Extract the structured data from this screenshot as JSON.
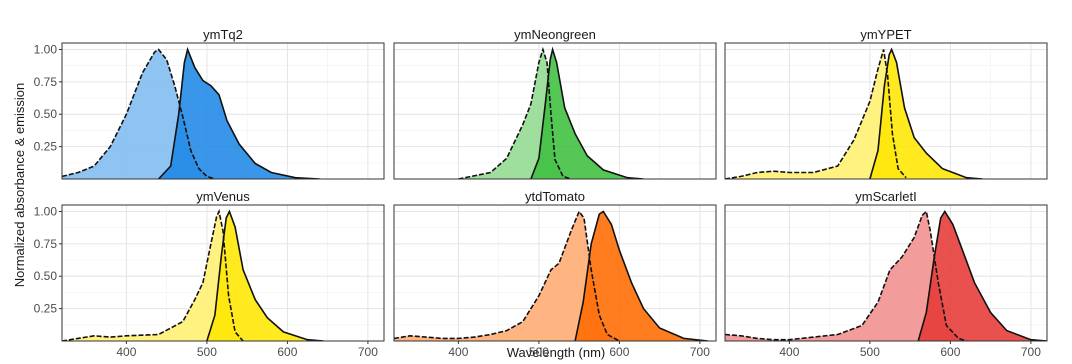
{
  "chart_data": {
    "type": "area",
    "xlabel": "Wavelength (nm)",
    "ylabel": "Normalized absorbance & emission",
    "xlim": [
      320,
      720
    ],
    "ylim": [
      0,
      1.05
    ],
    "x_ticks": [
      "400",
      "500",
      "600",
      "700"
    ],
    "y_ticks": [
      "0.25",
      "0.50",
      "0.75",
      "1.00"
    ],
    "grid": true,
    "facets": [
      {
        "title": "ymTq2",
        "color": "#1e88e5",
        "absorbance_peak": 438,
        "emission_peak": 475,
        "absorbance": [
          [
            320,
            0.02
          ],
          [
            340,
            0.05
          ],
          [
            360,
            0.1
          ],
          [
            380,
            0.25
          ],
          [
            400,
            0.5
          ],
          [
            420,
            0.82
          ],
          [
            435,
            0.98
          ],
          [
            440,
            1.0
          ],
          [
            450,
            0.92
          ],
          [
            460,
            0.72
          ],
          [
            470,
            0.48
          ],
          [
            480,
            0.22
          ],
          [
            490,
            0.08
          ],
          [
            500,
            0.02
          ],
          [
            510,
            0.0
          ]
        ],
        "emission": [
          [
            440,
            0.0
          ],
          [
            455,
            0.1
          ],
          [
            465,
            0.5
          ],
          [
            472,
            0.9
          ],
          [
            476,
            1.0
          ],
          [
            485,
            0.86
          ],
          [
            495,
            0.76
          ],
          [
            505,
            0.72
          ],
          [
            515,
            0.65
          ],
          [
            525,
            0.45
          ],
          [
            540,
            0.27
          ],
          [
            560,
            0.12
          ],
          [
            580,
            0.05
          ],
          [
            610,
            0.01
          ],
          [
            640,
            0.0
          ]
        ]
      },
      {
        "title": "ymNeongreen",
        "color": "#3dbf3d",
        "absorbance_peak": 505,
        "emission_peak": 517,
        "absorbance": [
          [
            400,
            0.0
          ],
          [
            440,
            0.05
          ],
          [
            460,
            0.16
          ],
          [
            480,
            0.42
          ],
          [
            490,
            0.58
          ],
          [
            500,
            0.9
          ],
          [
            505,
            1.0
          ],
          [
            510,
            0.9
          ],
          [
            515,
            0.5
          ],
          [
            520,
            0.15
          ],
          [
            530,
            0.02
          ],
          [
            540,
            0.0
          ]
        ],
        "emission": [
          [
            490,
            0.0
          ],
          [
            500,
            0.16
          ],
          [
            508,
            0.58
          ],
          [
            514,
            0.92
          ],
          [
            517,
            1.0
          ],
          [
            522,
            0.9
          ],
          [
            532,
            0.55
          ],
          [
            545,
            0.35
          ],
          [
            560,
            0.18
          ],
          [
            580,
            0.07
          ],
          [
            610,
            0.01
          ],
          [
            630,
            0.0
          ]
        ]
      },
      {
        "title": "ymYPET",
        "color": "#ffe600",
        "absorbance_peak": 517,
        "emission_peak": 527,
        "absorbance": [
          [
            320,
            0.0
          ],
          [
            340,
            0.02
          ],
          [
            360,
            0.05
          ],
          [
            380,
            0.06
          ],
          [
            400,
            0.05
          ],
          [
            430,
            0.05
          ],
          [
            460,
            0.1
          ],
          [
            480,
            0.3
          ],
          [
            490,
            0.45
          ],
          [
            500,
            0.6
          ],
          [
            510,
            0.85
          ],
          [
            517,
            1.0
          ],
          [
            522,
            0.8
          ],
          [
            528,
            0.35
          ],
          [
            535,
            0.08
          ],
          [
            545,
            0.01
          ]
        ],
        "emission": [
          [
            500,
            0.0
          ],
          [
            510,
            0.22
          ],
          [
            518,
            0.72
          ],
          [
            524,
            0.96
          ],
          [
            527,
            1.0
          ],
          [
            533,
            0.9
          ],
          [
            543,
            0.55
          ],
          [
            555,
            0.32
          ],
          [
            570,
            0.2
          ],
          [
            590,
            0.08
          ],
          [
            620,
            0.01
          ],
          [
            640,
            0.0
          ]
        ]
      },
      {
        "title": "ymVenus",
        "color": "#ffe600",
        "absorbance_peak": 515,
        "emission_peak": 528,
        "absorbance": [
          [
            320,
            0.0
          ],
          [
            340,
            0.02
          ],
          [
            360,
            0.04
          ],
          [
            380,
            0.03
          ],
          [
            400,
            0.04
          ],
          [
            440,
            0.05
          ],
          [
            470,
            0.15
          ],
          [
            485,
            0.32
          ],
          [
            495,
            0.45
          ],
          [
            505,
            0.75
          ],
          [
            512,
            0.96
          ],
          [
            515,
            1.0
          ],
          [
            520,
            0.85
          ],
          [
            527,
            0.35
          ],
          [
            535,
            0.07
          ],
          [
            545,
            0.0
          ]
        ],
        "emission": [
          [
            500,
            0.0
          ],
          [
            510,
            0.2
          ],
          [
            518,
            0.66
          ],
          [
            524,
            0.95
          ],
          [
            528,
            1.0
          ],
          [
            535,
            0.88
          ],
          [
            545,
            0.55
          ],
          [
            560,
            0.32
          ],
          [
            575,
            0.18
          ],
          [
            595,
            0.07
          ],
          [
            625,
            0.01
          ],
          [
            645,
            0.0
          ]
        ]
      },
      {
        "title": "ytdTomato",
        "color": "#ff6a00",
        "absorbance_peak": 553,
        "emission_peak": 580,
        "absorbance": [
          [
            320,
            0.02
          ],
          [
            340,
            0.04
          ],
          [
            360,
            0.03
          ],
          [
            380,
            0.02
          ],
          [
            400,
            0.02
          ],
          [
            420,
            0.03
          ],
          [
            440,
            0.05
          ],
          [
            460,
            0.08
          ],
          [
            480,
            0.15
          ],
          [
            500,
            0.35
          ],
          [
            515,
            0.55
          ],
          [
            525,
            0.6
          ],
          [
            540,
            0.85
          ],
          [
            550,
            1.0
          ],
          [
            556,
            0.95
          ],
          [
            565,
            0.55
          ],
          [
            575,
            0.2
          ],
          [
            585,
            0.05
          ],
          [
            600,
            0.0
          ]
        ],
        "emission": [
          [
            545,
            0.0
          ],
          [
            555,
            0.3
          ],
          [
            565,
            0.75
          ],
          [
            575,
            0.98
          ],
          [
            580,
            1.0
          ],
          [
            590,
            0.9
          ],
          [
            600,
            0.7
          ],
          [
            615,
            0.45
          ],
          [
            630,
            0.25
          ],
          [
            650,
            0.1
          ],
          [
            680,
            0.02
          ],
          [
            710,
            0.0
          ]
        ]
      },
      {
        "title": "ymScarletI",
        "color": "#e53935",
        "absorbance_peak": 570,
        "emission_peak": 593,
        "absorbance": [
          [
            320,
            0.05
          ],
          [
            340,
            0.04
          ],
          [
            360,
            0.02
          ],
          [
            380,
            0.01
          ],
          [
            400,
            0.01
          ],
          [
            430,
            0.03
          ],
          [
            460,
            0.05
          ],
          [
            490,
            0.12
          ],
          [
            510,
            0.3
          ],
          [
            525,
            0.55
          ],
          [
            540,
            0.65
          ],
          [
            555,
            0.8
          ],
          [
            565,
            0.97
          ],
          [
            570,
            1.0
          ],
          [
            575,
            0.85
          ],
          [
            585,
            0.45
          ],
          [
            595,
            0.12
          ],
          [
            610,
            0.02
          ],
          [
            620,
            0.0
          ]
        ],
        "emission": [
          [
            560,
            0.0
          ],
          [
            570,
            0.22
          ],
          [
            580,
            0.65
          ],
          [
            588,
            0.95
          ],
          [
            593,
            1.0
          ],
          [
            603,
            0.9
          ],
          [
            615,
            0.7
          ],
          [
            630,
            0.45
          ],
          [
            650,
            0.22
          ],
          [
            670,
            0.08
          ],
          [
            700,
            0.01
          ],
          [
            720,
            0.0
          ]
        ]
      }
    ]
  }
}
